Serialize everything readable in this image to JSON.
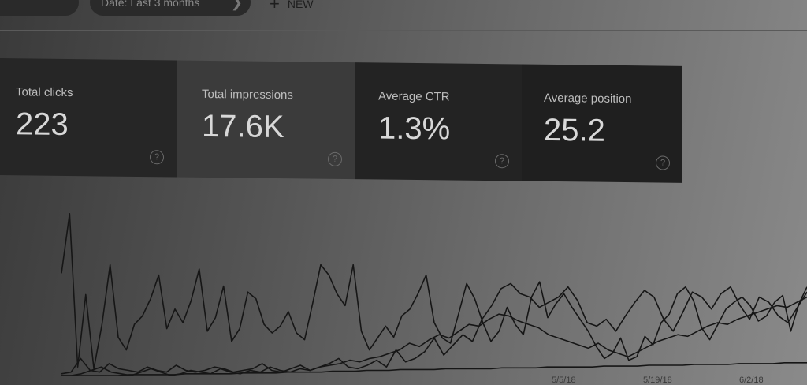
{
  "toolbar": {
    "left_chip_label": "",
    "date_chip_label": "Date: Last 3 months",
    "new_label": "NEW"
  },
  "metrics": [
    {
      "label": "Total clicks",
      "value": "223"
    },
    {
      "label": "Total impressions",
      "value": "17.6K"
    },
    {
      "label": "Average CTR",
      "value": "1.3%"
    },
    {
      "label": "Average position",
      "value": "25.2"
    }
  ],
  "icons": {
    "help": "question-circle-icon",
    "add": "plus-icon",
    "chevron": "chevron-right-icon"
  },
  "chart_data": {
    "type": "line",
    "x_tick_labels": [
      "5/5/18",
      "5/19/18",
      "6/2/18"
    ],
    "series": [
      {
        "values": [
          120,
          190,
          10,
          95,
          8,
          60,
          130,
          45,
          30,
          60,
          70,
          90,
          118,
          55,
          78,
          62,
          88,
          125,
          52,
          68,
          105,
          40,
          55,
          98,
          90,
          60,
          50,
          58,
          75,
          50,
          42,
          85,
          130,
          118,
          96,
          82,
          130,
          52,
          30,
          44,
          58,
          45,
          70,
          78,
          96,
          118,
          62,
          44,
          38,
          72,
          108,
          90,
          62,
          40,
          52,
          80,
          60,
          48,
          92,
          110,
          68,
          84,
          96,
          80,
          66,
          52,
          34,
          20,
          26,
          44,
          18,
          22,
          46,
          36,
          62,
          72,
          96,
          104,
          88,
          56,
          42,
          60,
          78,
          86,
          92,
          82,
          64,
          70,
          86,
          94,
          52,
          84,
          104
        ]
      },
      {
        "values": [
          2,
          4,
          20,
          6,
          4,
          14,
          8,
          6,
          4,
          10,
          6,
          4,
          12,
          6,
          4,
          6,
          10,
          8,
          4,
          6,
          8,
          14,
          6,
          4,
          8,
          12,
          6,
          10,
          14,
          20,
          10,
          8,
          12,
          18,
          10,
          30,
          16,
          20,
          28,
          44,
          24,
          36,
          48,
          40,
          66,
          82,
          102,
          108,
          96,
          92,
          80,
          86,
          92,
          104,
          88,
          62,
          58,
          66,
          52,
          70,
          86,
          100,
          92,
          66,
          52,
          74,
          98,
          92,
          78,
          96,
          104,
          82,
          66,
          92,
          86,
          70,
          62,
          80,
          98
        ]
      },
      {
        "values": [
          0,
          0,
          2,
          6,
          10,
          4,
          2,
          0,
          4,
          8,
          4,
          0,
          2,
          6,
          4,
          2,
          8,
          4,
          2,
          6,
          4,
          10,
          6,
          4,
          8,
          6,
          10,
          12,
          14,
          18,
          16,
          20,
          22,
          26,
          30,
          38,
          34,
          42,
          48,
          44,
          52,
          60,
          58,
          66,
          72,
          70,
          64,
          60,
          56,
          48,
          44,
          40,
          36,
          32,
          38,
          30,
          26,
          22,
          28,
          34,
          40,
          44,
          48,
          46,
          52,
          58,
          62,
          60,
          66,
          70,
          74,
          78,
          82,
          80,
          86,
          92
        ]
      },
      {
        "values": [
          0,
          0,
          0,
          0,
          0,
          0,
          1,
          1,
          1,
          1,
          1,
          2,
          2,
          2,
          2,
          2,
          3,
          3,
          3,
          3,
          4,
          4,
          4,
          4,
          5,
          5,
          5,
          6,
          6,
          6,
          7,
          7,
          7,
          7,
          8,
          8,
          8,
          8,
          8,
          9,
          9,
          9,
          9,
          10,
          10,
          10,
          10,
          10,
          11,
          11,
          11,
          11,
          12,
          12,
          12,
          12,
          13,
          13,
          13,
          13,
          14,
          14,
          14,
          14,
          15,
          15,
          15
        ]
      }
    ]
  }
}
